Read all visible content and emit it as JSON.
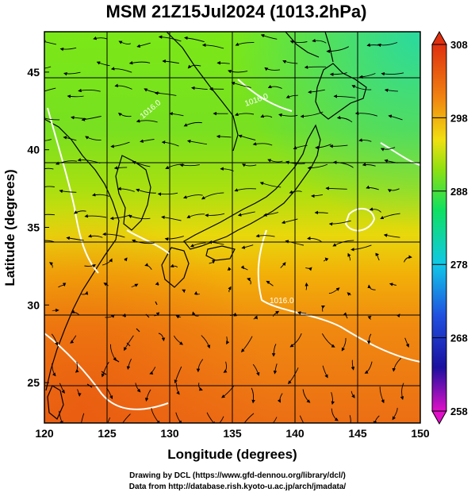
{
  "title": "MSM 21Z15Jul2024 (1013.2hPa)",
  "x_axis": {
    "label": "Longitude (degrees)",
    "ticks": [
      "120",
      "125",
      "130",
      "135",
      "140",
      "145",
      "150"
    ],
    "range": [
      120,
      150
    ]
  },
  "y_axis": {
    "label": "Latitude  (degrees)",
    "ticks": [
      "25",
      "30",
      "35",
      "40",
      "45"
    ],
    "range": [
      22.4,
      47.6
    ]
  },
  "colorbar": {
    "ticks": [
      "308",
      "298",
      "288",
      "278",
      "268",
      "258"
    ],
    "range": [
      258,
      308
    ],
    "colors": [
      "#e010c8",
      "#1a10a0",
      "#2050e0",
      "#10c8e8",
      "#10e060",
      "#90e010",
      "#f0e010",
      "#f08010",
      "#e03010"
    ]
  },
  "contours": {
    "labels": [
      "1016.0",
      "1016.0",
      "1016.0"
    ]
  },
  "credits": {
    "line1": "Drawing by DCL (https://www.gfd-dennou.org/library/dcl/)",
    "line2": "Data from http://database.rish.kyoto-u.ac.jp/arch/jmadata/"
  }
}
